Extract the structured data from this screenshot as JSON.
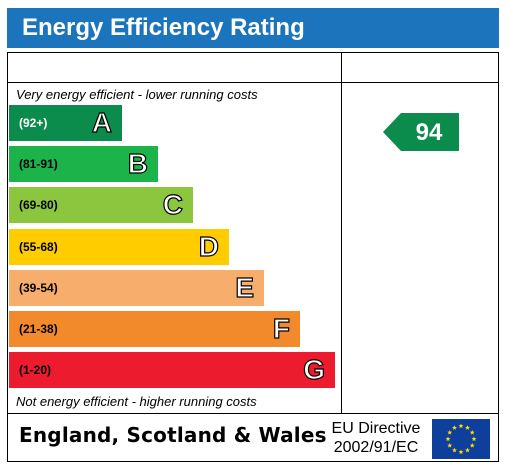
{
  "title": "Energy Efficiency Rating",
  "top_caption": "Very energy efficient - lower running costs",
  "bottom_caption": "Not energy efficient - higher running costs",
  "footer": {
    "region": "England, Scotland & Wales",
    "directive_line1": "EU Directive",
    "directive_line2": "2002/91/EC"
  },
  "chart_data": {
    "type": "bar",
    "title": "Energy Efficiency Rating",
    "categories": [
      "A",
      "B",
      "C",
      "D",
      "E",
      "F",
      "G"
    ],
    "ranges": [
      "(92+)",
      "(81-91)",
      "(69-80)",
      "(55-68)",
      "(39-54)",
      "(21-38)",
      "(1-20)"
    ],
    "colors": [
      "#0c8c4c",
      "#1db34b",
      "#8cc63f",
      "#ffcc00",
      "#f7ad6b",
      "#f28a2c",
      "#ec1c2e"
    ],
    "current_rating": {
      "value": 94,
      "band": "A",
      "color": "#0c8c4c"
    }
  }
}
